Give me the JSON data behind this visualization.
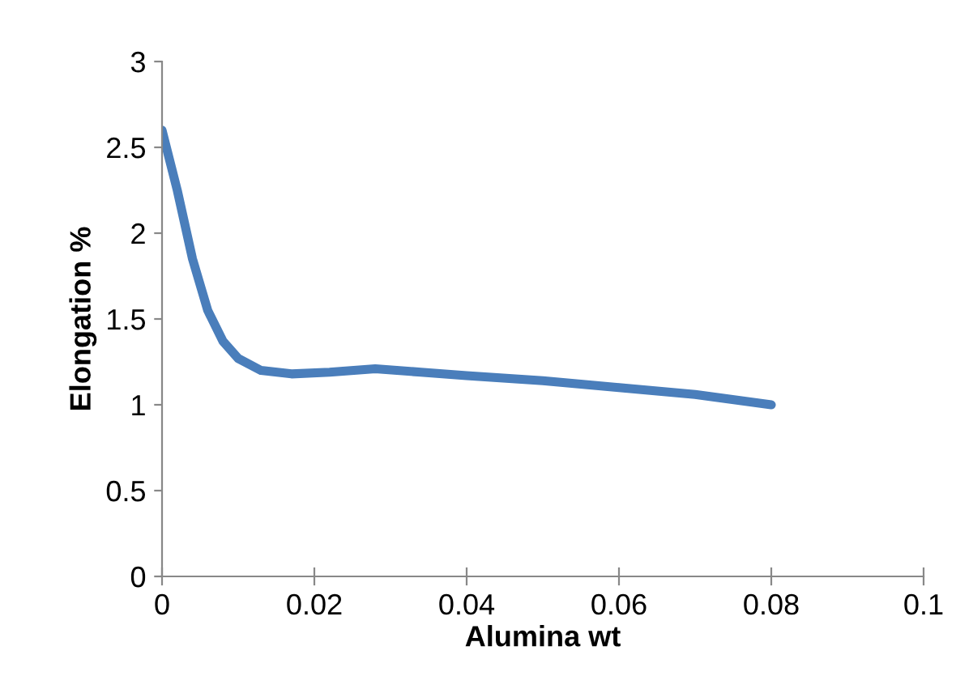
{
  "chart_data": {
    "type": "line",
    "xlabel": "Alumina wt",
    "ylabel": "Elongation %",
    "x": [
      0,
      0.002,
      0.004,
      0.006,
      0.008,
      0.01,
      0.013,
      0.017,
      0.022,
      0.028,
      0.034,
      0.04,
      0.05,
      0.06,
      0.07,
      0.08
    ],
    "series": [
      {
        "color": "#4a7ebb",
        "values": [
          2.6,
          2.25,
          1.85,
          1.55,
          1.37,
          1.27,
          1.2,
          1.18,
          1.19,
          1.21,
          1.19,
          1.17,
          1.14,
          1.1,
          1.06,
          1.0
        ]
      }
    ],
    "xlim": [
      0,
      0.1
    ],
    "xticks": [
      0,
      0.02,
      0.04,
      0.06,
      0.08,
      0.1
    ],
    "ylim": [
      0,
      3
    ],
    "yticks": [
      0,
      0.5,
      1,
      1.5,
      2,
      2.5,
      3
    ],
    "grid": false,
    "marker": "none",
    "line_style": "solid"
  }
}
